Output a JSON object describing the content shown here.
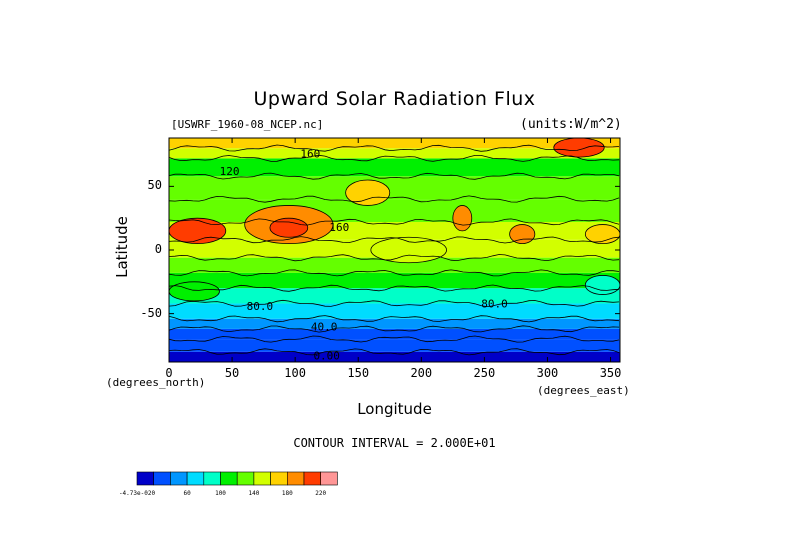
{
  "chart_data": {
    "type": "heatmap",
    "title": "Upward Solar Radiation Flux",
    "source_label": "[USWRF_1960-08_NCEP.nc]",
    "units_label": "(units:W/m^2)",
    "xlabel": "Longitude",
    "ylabel": "Latitude",
    "x_unit_label": "(degrees_east)",
    "y_unit_label": "(degrees_north)",
    "xlim": [
      0,
      357.5
    ],
    "ylim": [
      -88,
      88
    ],
    "x_ticks": [
      0,
      50,
      100,
      150,
      200,
      250,
      300,
      350
    ],
    "y_ticks": [
      -50,
      0,
      50
    ],
    "contour_interval_label": "CONTOUR INTERVAL = 2.000E+01",
    "contour_labels": [
      {
        "text": "160",
        "lon": 112,
        "lat": 76
      },
      {
        "text": "120",
        "lon": 48,
        "lat": 62
      },
      {
        "text": "160",
        "lon": 135,
        "lat": 18
      },
      {
        "text": "80.0",
        "lon": 72,
        "lat": -44
      },
      {
        "text": "80.0",
        "lon": 258,
        "lat": -42
      },
      {
        "text": "40.0",
        "lon": 123,
        "lat": -60
      },
      {
        "text": "0.00",
        "lon": 125,
        "lat": -83
      }
    ],
    "colorbar": {
      "levels": [
        0,
        20,
        40,
        60,
        80,
        100,
        120,
        140,
        160,
        180,
        200,
        220
      ],
      "tick_labels": [
        "-4.73e-020",
        "60",
        "100",
        "140",
        "180",
        "220"
      ],
      "colors": [
        "#0000c8",
        "#0050ff",
        "#0096ff",
        "#00dcff",
        "#00ffc8",
        "#00f000",
        "#64ff00",
        "#d2ff00",
        "#ffd200",
        "#ff8c00",
        "#ff3c00",
        "#ff9696"
      ]
    },
    "zonal_bands": [
      {
        "lat": [
          -88,
          -80
        ],
        "value": 0
      },
      {
        "lat": [
          -80,
          -70
        ],
        "value": 20
      },
      {
        "lat": [
          -70,
          -62
        ],
        "value": 30
      },
      {
        "lat": [
          -62,
          -54
        ],
        "value": 50
      },
      {
        "lat": [
          -54,
          -42
        ],
        "value": 70
      },
      {
        "lat": [
          -42,
          -30
        ],
        "value": 90
      },
      {
        "lat": [
          -30,
          -18
        ],
        "value": 110
      },
      {
        "lat": [
          -18,
          -6
        ],
        "value": 125
      },
      {
        "lat": [
          -6,
          8
        ],
        "value": 140
      },
      {
        "lat": [
          8,
          22
        ],
        "value": 150
      },
      {
        "lat": [
          22,
          40
        ],
        "value": 125
      },
      {
        "lat": [
          40,
          58
        ],
        "value": 120
      },
      {
        "lat": [
          58,
          72
        ],
        "value": 110
      },
      {
        "lat": [
          72,
          80
        ],
        "value": 150
      },
      {
        "lat": [
          80,
          88
        ],
        "value": 170
      }
    ],
    "regions": [
      {
        "lon": [
          0,
          45
        ],
        "lat": [
          5,
          25
        ],
        "value": 210
      },
      {
        "lon": [
          60,
          130
        ],
        "lat": [
          5,
          35
        ],
        "value": 180
      },
      {
        "lon": [
          80,
          110
        ],
        "lat": [
          10,
          25
        ],
        "value": 200
      },
      {
        "lon": [
          140,
          175
        ],
        "lat": [
          35,
          55
        ],
        "value": 165
      },
      {
        "lon": [
          225,
          240
        ],
        "lat": [
          15,
          35
        ],
        "value": 185
      },
      {
        "lon": [
          270,
          290
        ],
        "lat": [
          5,
          20
        ],
        "value": 180
      },
      {
        "lon": [
          305,
          345
        ],
        "lat": [
          73,
          88
        ],
        "value": 205
      },
      {
        "lon": [
          330,
          357.5
        ],
        "lat": [
          5,
          20
        ],
        "value": 175
      },
      {
        "lon": [
          160,
          220
        ],
        "lat": [
          -10,
          10
        ],
        "value": 150
      },
      {
        "lon": [
          0,
          40
        ],
        "lat": [
          -40,
          -25
        ],
        "value": 100
      },
      {
        "lon": [
          330,
          357.5
        ],
        "lat": [
          -35,
          -20
        ],
        "value": 90
      }
    ]
  }
}
